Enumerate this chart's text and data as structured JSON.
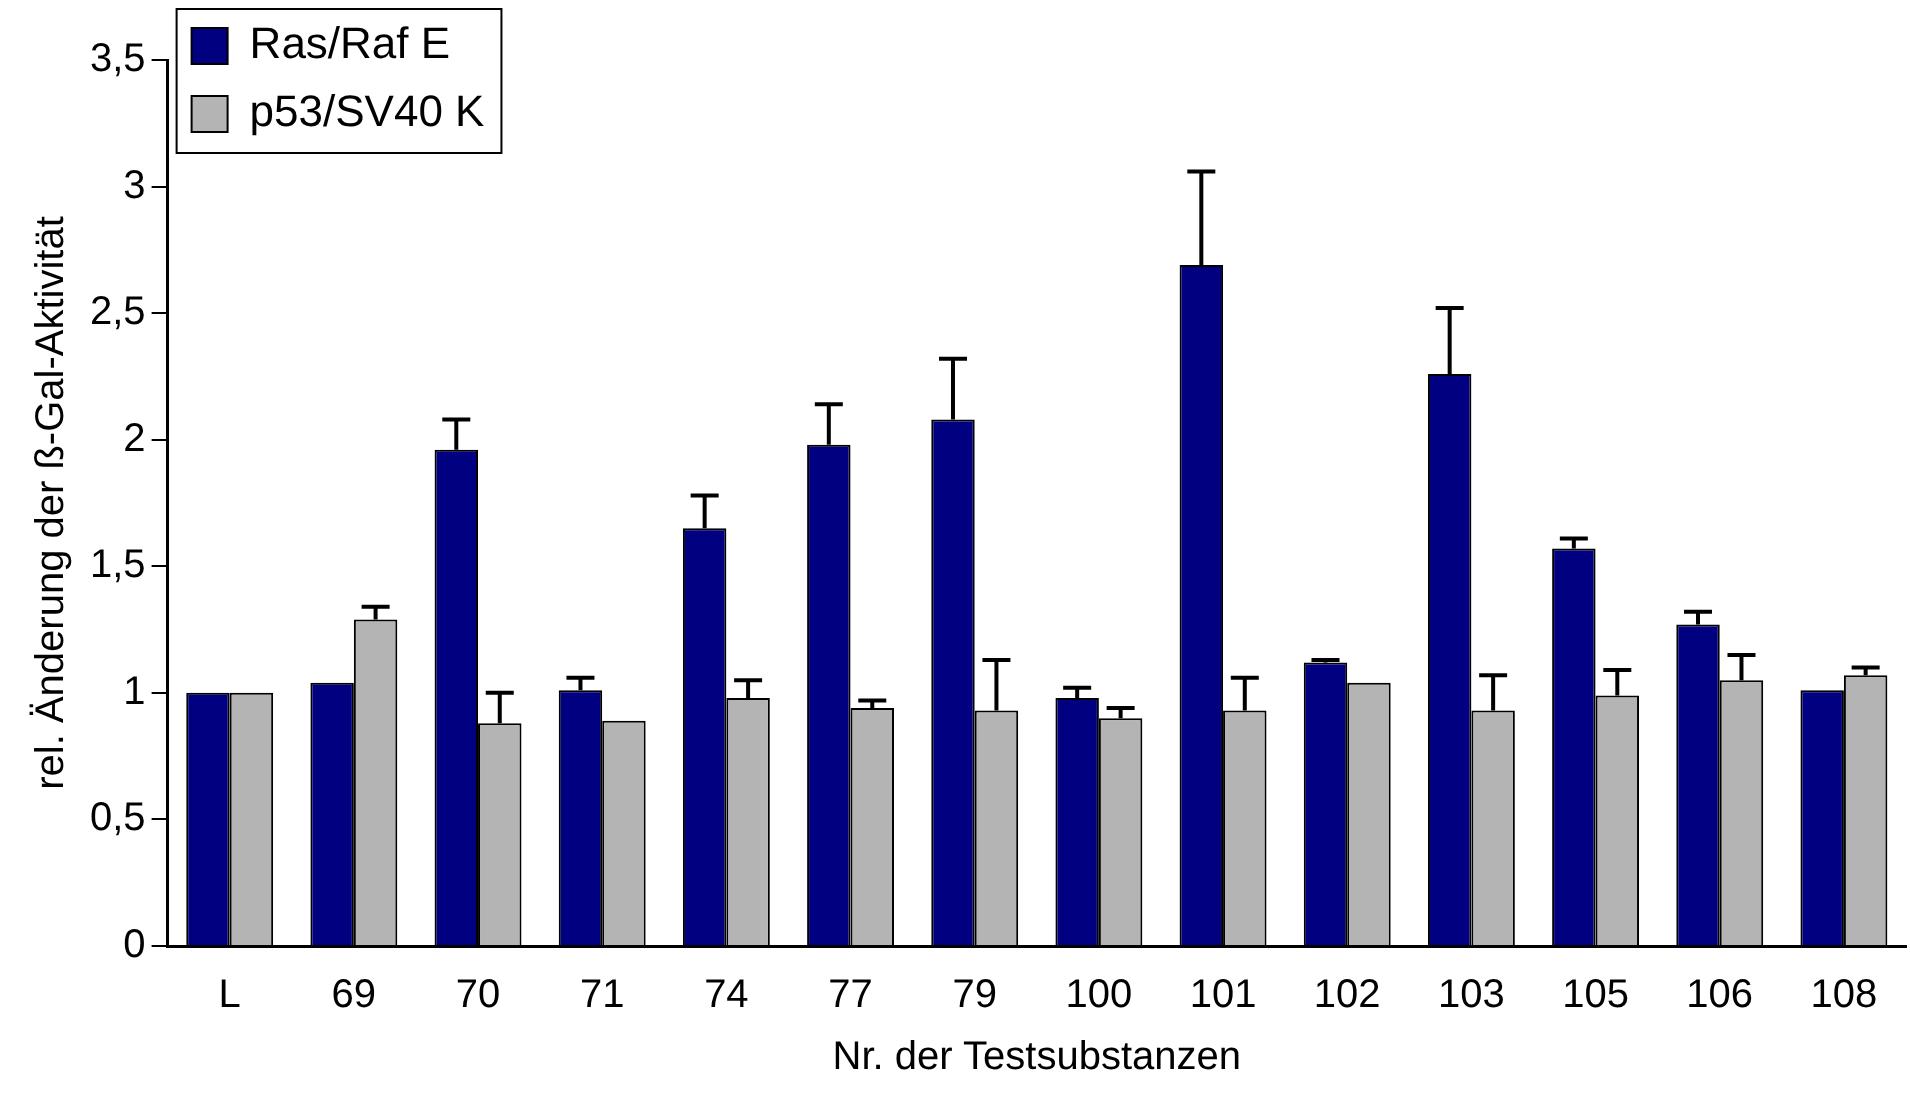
{
  "chart_data": {
    "type": "bar",
    "xlabel": "Nr. der Testsubstanzen",
    "ylabel": "rel. Änderung der ß-Gal-Aktivität",
    "categories": [
      "L",
      "69",
      "70",
      "71",
      "74",
      "77",
      "79",
      "100",
      "101",
      "102",
      "103",
      "105",
      "106",
      "108"
    ],
    "series": [
      {
        "name": "Ras/Raf E",
        "color": "#000080",
        "values": [
          1.0,
          1.04,
          1.96,
          1.01,
          1.65,
          1.98,
          2.08,
          0.98,
          2.69,
          1.12,
          2.26,
          1.57,
          1.27,
          1.01
        ],
        "errors": [
          null,
          null,
          [
            1.96,
            2.08
          ],
          [
            1.01,
            1.06
          ],
          [
            1.65,
            1.78
          ],
          [
            1.98,
            2.14
          ],
          [
            2.08,
            2.32
          ],
          [
            0.98,
            1.02
          ],
          [
            2.69,
            3.06
          ],
          [
            1.12,
            1.13
          ],
          [
            2.26,
            2.52
          ],
          [
            1.57,
            1.61
          ],
          [
            1.27,
            1.32
          ],
          null
        ]
      },
      {
        "name": "p53/SV40 K",
        "color": "#b4b4b4",
        "values": [
          1.0,
          1.29,
          0.88,
          0.89,
          0.98,
          0.94,
          0.93,
          0.9,
          0.93,
          1.04,
          0.93,
          0.99,
          1.05,
          1.07
        ],
        "errors": [
          null,
          [
            1.29,
            1.34
          ],
          [
            0.88,
            1.0
          ],
          null,
          [
            0.98,
            1.05
          ],
          [
            0.94,
            0.97
          ],
          [
            0.93,
            1.13
          ],
          [
            0.9,
            0.94
          ],
          [
            0.93,
            1.06
          ],
          null,
          [
            0.93,
            1.07
          ],
          [
            0.99,
            1.09
          ],
          [
            1.05,
            1.15
          ],
          [
            1.07,
            1.1
          ]
        ]
      }
    ],
    "ylim": [
      0,
      3.5
    ],
    "yticks": [
      0,
      {
        "value": 0.5,
        "label": "0,5"
      },
      1,
      {
        "value": 1.5,
        "label": "1,5"
      },
      2,
      {
        "value": 2.5,
        "label": "2,5"
      },
      3,
      {
        "value": 3.5,
        "label": "3,5"
      }
    ],
    "grid": false,
    "legend": "top left"
  }
}
